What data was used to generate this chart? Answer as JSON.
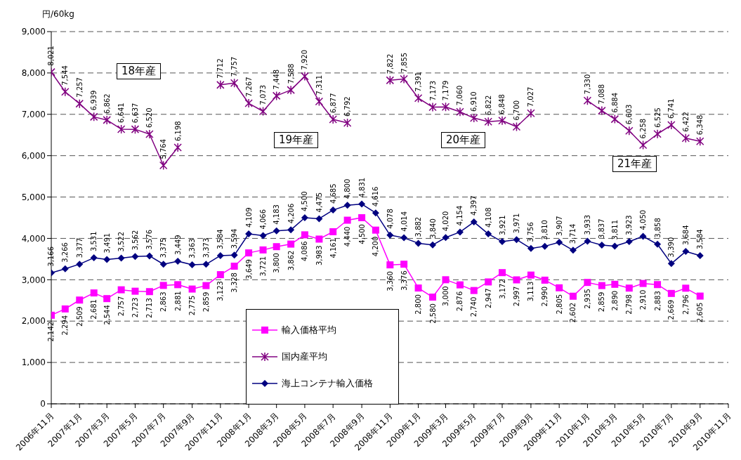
{
  "chart_data": {
    "type": "line",
    "ylabel": "円/60kg",
    "x": [
      "2006-11",
      "2006-12",
      "2007-01",
      "2007-02",
      "2007-03",
      "2007-04",
      "2007-05",
      "2007-06",
      "2007-07",
      "2007-08",
      "2007-09",
      "2007-10",
      "2007-11",
      "2007-12",
      "2008-01",
      "2008-02",
      "2008-03",
      "2008-04",
      "2008-05",
      "2008-06",
      "2008-07",
      "2008-08",
      "2008-09",
      "2008-10",
      "2008-11",
      "2008-12",
      "2009-01",
      "2009-02",
      "2009-03",
      "2009-04",
      "2009-05",
      "2009-06",
      "2009-07",
      "2009-08",
      "2009-09",
      "2009-10",
      "2009-11",
      "2009-12",
      "2010-01",
      "2010-02",
      "2010-03",
      "2010-04",
      "2010-05",
      "2010-06",
      "2010-07",
      "2010-08",
      "2010-09"
    ],
    "series": [
      {
        "name": "輸入価格平均",
        "color": "#ff00ff",
        "marker": "square",
        "values": [
          2142,
          2294,
          2509,
          2681,
          2544,
          2757,
          2723,
          2713,
          2863,
          2881,
          2775,
          2859,
          3123,
          3328,
          3649,
          3721,
          3800,
          3862,
          4086,
          3983,
          4161,
          4440,
          4500,
          4200,
          3360,
          3376,
          2800,
          2580,
          3000,
          2876,
          2740,
          2947,
          3172,
          2997,
          3113,
          2990,
          2805,
          2602,
          2935,
          2859,
          2890,
          2798,
          2910,
          2883,
          2669,
          2796,
          2605
        ],
        "value_labels": [
          "2,142",
          "2,294",
          "2,509",
          "2,681",
          "2,544",
          "2,757",
          "2,723",
          "2,713",
          "2,863",
          "2,881",
          "2,775",
          "2,859",
          "3,123",
          "3,328",
          "3,649",
          "3,721",
          "3,800",
          "3,862",
          "4,086",
          "3,983",
          "4,161",
          "4,440",
          "4,500",
          "4,200",
          "3,360",
          "3,376",
          "2,800",
          "2,580",
          "3,000",
          "2,876",
          "2,740",
          "2,947",
          "3,172",
          "2,997",
          "3,113",
          "2,990",
          "2,805",
          "2,602",
          "2,935",
          "2,859",
          "2,890",
          "2,798",
          "2,910",
          "2,883",
          "2,669",
          "2,796",
          "2,605"
        ]
      },
      {
        "name": "国内産平均",
        "color": "#800080",
        "marker": "cross",
        "values": [
          8021,
          7544,
          7257,
          6939,
          6862,
          6641,
          6637,
          6520,
          5764,
          6198,
          null,
          null,
          7712,
          7757,
          7267,
          7073,
          7448,
          7588,
          7920,
          7311,
          6877,
          6792,
          null,
          null,
          7822,
          7855,
          7391,
          7173,
          7179,
          7060,
          6910,
          6822,
          6848,
          6700,
          7027,
          null,
          null,
          null,
          7330,
          7088,
          6884,
          6603,
          6258,
          6525,
          6741,
          6422,
          6348
        ],
        "value_labels": [
          "8,021",
          "7,544",
          "7,257",
          "6,939",
          "6,862",
          "6,641",
          "6,637",
          "6,520",
          "5,764",
          "6,198",
          null,
          null,
          "7,712",
          "7,757",
          "7,267",
          "7,073",
          "7,448",
          "7,588",
          "7,920",
          "7,311",
          "6,877",
          "6,792",
          null,
          null,
          "7,822",
          "7,855",
          "7,391",
          "7,173",
          "7,179",
          "7,060",
          "6,910",
          "6,822",
          "6,848",
          "6,700",
          "7,027",
          null,
          null,
          null,
          "7,330",
          "7,088",
          "6,884",
          "6,603",
          "6,258",
          "6,525",
          "6,741",
          "6,422",
          "6,348"
        ]
      },
      {
        "name": "海上コンテナ輸入価格",
        "color": "#000080",
        "marker": "diamond",
        "values": [
          3166,
          3266,
          3377,
          3531,
          3491,
          3522,
          3562,
          3576,
          3375,
          3449,
          3363,
          3373,
          3584,
          3594,
          4109,
          4066,
          4183,
          4206,
          4500,
          4475,
          4685,
          4800,
          4831,
          4616,
          4078,
          4014,
          3882,
          3840,
          4020,
          4154,
          4397,
          4108,
          3921,
          3971,
          3756,
          3810,
          3907,
          3714,
          3933,
          3837,
          3811,
          3923,
          4050,
          3858,
          3390,
          3684,
          3584
        ],
        "value_labels": [
          "3,166",
          "3,266",
          "3,377",
          "3,531",
          "3,491",
          "3,522",
          "3,562",
          "3,576",
          "3,375",
          "3,449",
          "3,363",
          "3,373",
          "3,584",
          "3,594",
          "4,109",
          "4,066",
          "4,183",
          "4,206",
          "4,500",
          "4,475",
          "4,685",
          "4,800",
          "4,831",
          "4,616",
          "4,078",
          "4,014",
          "3,882",
          "3,840",
          "4,020",
          "4,154",
          "4,397",
          "4,108",
          "3,921",
          "3,971",
          "3,756",
          "3,810",
          "3,907",
          "3,714",
          "3,933",
          "3,837",
          "3,811",
          "3,923",
          "4,050",
          "3,858",
          "3,390",
          "3,684",
          "3,584"
        ]
      }
    ],
    "xlim": [
      "2006-11",
      "2010-11"
    ],
    "xticks": [
      {
        "value": "2006-11",
        "label": "2006年11月"
      },
      {
        "value": "2007-01",
        "label": "2007年1月"
      },
      {
        "value": "2007-03",
        "label": "2007年3月"
      },
      {
        "value": "2007-05",
        "label": "2007年5月"
      },
      {
        "value": "2007-07",
        "label": "2007年7月"
      },
      {
        "value": "2007-09",
        "label": "2007年9月"
      },
      {
        "value": "2007-11",
        "label": "2007年11月"
      },
      {
        "value": "2008-01",
        "label": "2008年1月"
      },
      {
        "value": "2008-03",
        "label": "2008年3月"
      },
      {
        "value": "2008-05",
        "label": "2008年5月"
      },
      {
        "value": "2008-07",
        "label": "2008年7月"
      },
      {
        "value": "2008-09",
        "label": "2008年9月"
      },
      {
        "value": "2008-11",
        "label": "2008年11月"
      },
      {
        "value": "2009-01",
        "label": "2009年1月"
      },
      {
        "value": "2009-03",
        "label": "2009年3月"
      },
      {
        "value": "2009-05",
        "label": "2009年5月"
      },
      {
        "value": "2009-07",
        "label": "2009年7月"
      },
      {
        "value": "2009-09",
        "label": "2009年9月"
      },
      {
        "value": "2009-11",
        "label": "2009年11月"
      },
      {
        "value": "2010-01",
        "label": "2010年1月"
      },
      {
        "value": "2010-03",
        "label": "2010年3月"
      },
      {
        "value": "2010-05",
        "label": "2010年5月"
      },
      {
        "value": "2010-07",
        "label": "2010年7月"
      },
      {
        "value": "2010-09",
        "label": "2010年9月"
      },
      {
        "value": "2010-11",
        "label": "2010年11月"
      }
    ],
    "ylim": [
      0,
      9000
    ],
    "yticks": [
      {
        "value": 0,
        "label": "0"
      },
      {
        "value": 1000,
        "label": "1,000"
      },
      {
        "value": 2000,
        "label": "2,000"
      },
      {
        "value": 3000,
        "label": "3,000"
      },
      {
        "value": 4000,
        "label": "4,000"
      },
      {
        "value": 5000,
        "label": "5,000"
      },
      {
        "value": 6000,
        "label": "6,000"
      },
      {
        "value": 7000,
        "label": "7,000"
      },
      {
        "value": 8000,
        "label": "8,000"
      },
      {
        "value": 9000,
        "label": "9,000"
      }
    ],
    "grid": "y",
    "legend": "bottom",
    "annotations": [
      "18年産",
      "19年産",
      "20年産",
      "21年産"
    ]
  }
}
